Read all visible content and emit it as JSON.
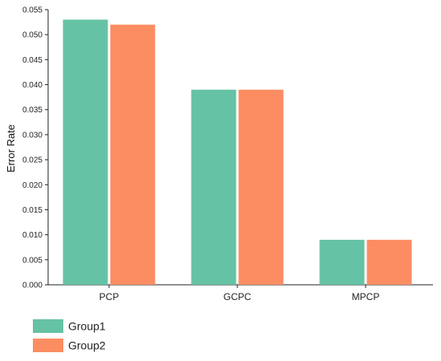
{
  "chart_data": {
    "type": "bar",
    "title": "",
    "xlabel": "",
    "ylabel": "Error Rate",
    "categories": [
      "PCP",
      "GCPC",
      "MPCP"
    ],
    "series": [
      {
        "name": "Group1",
        "color": "#66C2A5",
        "values": [
          0.053,
          0.039,
          0.009
        ]
      },
      {
        "name": "Group2",
        "color": "#FC8D62",
        "values": [
          0.052,
          0.039,
          0.009
        ]
      }
    ],
    "ylim": [
      0,
      0.055
    ],
    "yticks": [
      "0.000",
      "0.005",
      "0.010",
      "0.015",
      "0.020",
      "0.025",
      "0.030",
      "0.035",
      "0.040",
      "0.045",
      "0.050",
      "0.055"
    ],
    "grid": false,
    "legend_position": "bottom-left"
  }
}
